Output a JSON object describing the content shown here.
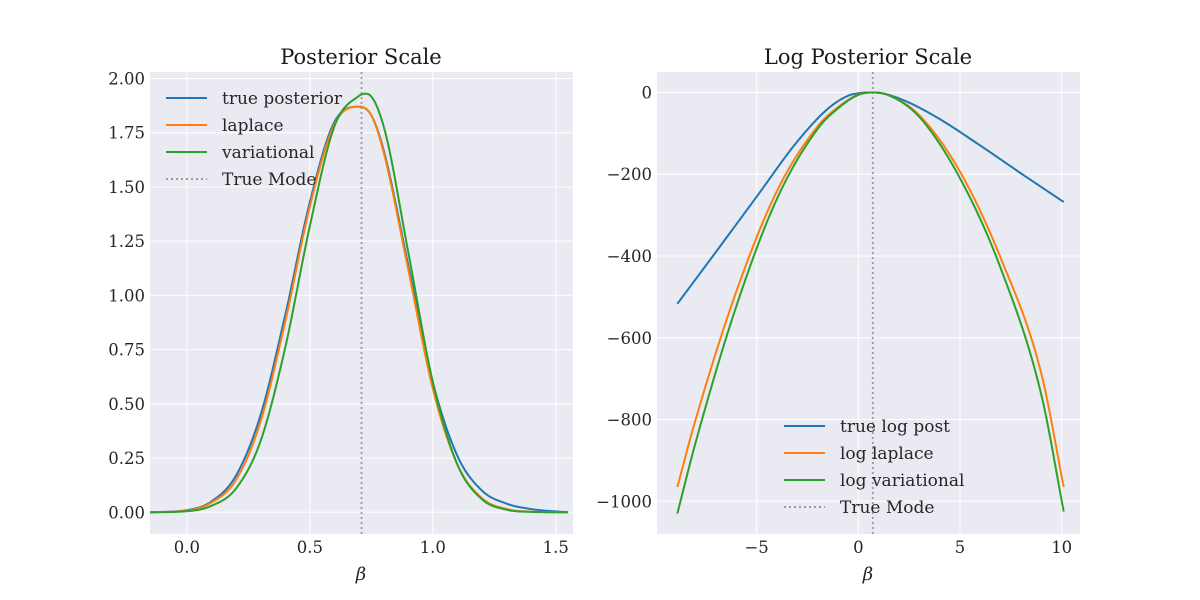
{
  "chart_data": [
    {
      "type": "line",
      "title": "Posterior Scale",
      "xlabel": "β",
      "ylabel": "",
      "xlim": [
        -0.15,
        1.57
      ],
      "ylim": [
        -0.1,
        2.03
      ],
      "xticks": [
        0.0,
        0.5,
        1.0,
        1.5
      ],
      "xtick_labels": [
        "0.0",
        "0.5",
        "1.0",
        "1.5"
      ],
      "yticks": [
        0.0,
        0.25,
        0.5,
        0.75,
        1.0,
        1.25,
        1.5,
        1.75,
        2.0
      ],
      "ytick_labels": [
        "0.00",
        "0.25",
        "0.50",
        "0.75",
        "1.00",
        "1.25",
        "1.50",
        "1.75",
        "2.00"
      ],
      "grid": true,
      "legend": "top-left",
      "true_mode": 0.71,
      "series": [
        {
          "name": "true posterior",
          "color": "#1f77b4",
          "x": [
            -0.15,
            0.0,
            0.1,
            0.2,
            0.3,
            0.4,
            0.5,
            0.6,
            0.7,
            0.75,
            0.8,
            0.9,
            1.0,
            1.1,
            1.2,
            1.3,
            1.4,
            1.55
          ],
          "y": [
            0.0,
            0.01,
            0.05,
            0.17,
            0.45,
            0.91,
            1.43,
            1.8,
            1.87,
            1.83,
            1.67,
            1.14,
            0.6,
            0.26,
            0.1,
            0.04,
            0.015,
            0.0
          ]
        },
        {
          "name": "laplace",
          "color": "#ff7f0e",
          "x": [
            -0.15,
            0.0,
            0.1,
            0.2,
            0.3,
            0.4,
            0.5,
            0.6,
            0.7,
            0.75,
            0.8,
            0.9,
            1.0,
            1.1,
            1.2,
            1.3,
            1.4,
            1.55
          ],
          "y": [
            0.0,
            0.008,
            0.045,
            0.15,
            0.42,
            0.88,
            1.41,
            1.79,
            1.87,
            1.83,
            1.66,
            1.12,
            0.57,
            0.22,
            0.065,
            0.015,
            0.003,
            0.0
          ]
        },
        {
          "name": "variational",
          "color": "#2ca02c",
          "x": [
            -0.15,
            0.0,
            0.1,
            0.2,
            0.3,
            0.4,
            0.5,
            0.6,
            0.7,
            0.73,
            0.8,
            0.9,
            1.0,
            1.1,
            1.2,
            1.3,
            1.4,
            1.55
          ],
          "y": [
            0.0,
            0.005,
            0.03,
            0.11,
            0.33,
            0.76,
            1.32,
            1.78,
            1.92,
            1.93,
            1.78,
            1.2,
            0.6,
            0.22,
            0.06,
            0.012,
            0.002,
            0.0
          ]
        }
      ]
    },
    {
      "type": "line",
      "title": "Log Posterior Scale",
      "xlabel": "β",
      "ylabel": "",
      "xlim": [
        -9.9,
        10.9
      ],
      "ylim": [
        -1080,
        50
      ],
      "xticks": [
        -5,
        0,
        5,
        10
      ],
      "xtick_labels": [
        "−5",
        "0",
        "5",
        "10"
      ],
      "yticks": [
        0,
        -200,
        -400,
        -600,
        -800,
        -1000
      ],
      "ytick_labels": [
        "0",
        "−200",
        "−400",
        "−600",
        "−800",
        "−1000"
      ],
      "grid": true,
      "legend": "bottom-center",
      "true_mode": 0.71,
      "series": [
        {
          "name": "true log post",
          "color": "#1f77b4",
          "x": [
            -8.9,
            -7,
            -5,
            -3,
            -1.5,
            -0.5,
            0,
            0.5,
            0.71,
            1.0,
            1.5,
            2.5,
            4,
            6,
            8,
            10.1
          ],
          "y": [
            -517,
            -390,
            -255,
            -120,
            -40,
            -8,
            -2,
            0,
            0,
            -1,
            -6,
            -25,
            -65,
            -130,
            -198,
            -268
          ]
        },
        {
          "name": "log laplace",
          "color": "#ff7f0e",
          "x": [
            -8.9,
            -8,
            -6,
            -4,
            -2,
            -1,
            0,
            0.71,
            1.5,
            3,
            5,
            7,
            9,
            10.1
          ],
          "y": [
            -965,
            -800,
            -487,
            -241,
            -83,
            -36,
            -5,
            0,
            -7,
            -56,
            -194,
            -405,
            -688,
            -965
          ]
        },
        {
          "name": "log variational",
          "color": "#2ca02c",
          "x": [
            -8.9,
            -8,
            -6,
            -4,
            -2,
            -1,
            0,
            0.71,
            1.5,
            3,
            5,
            7,
            9,
            10.1
          ],
          "y": [
            -1030,
            -856,
            -523,
            -260,
            -89,
            -39,
            -6,
            0,
            -7,
            -60,
            -210,
            -430,
            -740,
            -1025
          ]
        }
      ]
    }
  ]
}
